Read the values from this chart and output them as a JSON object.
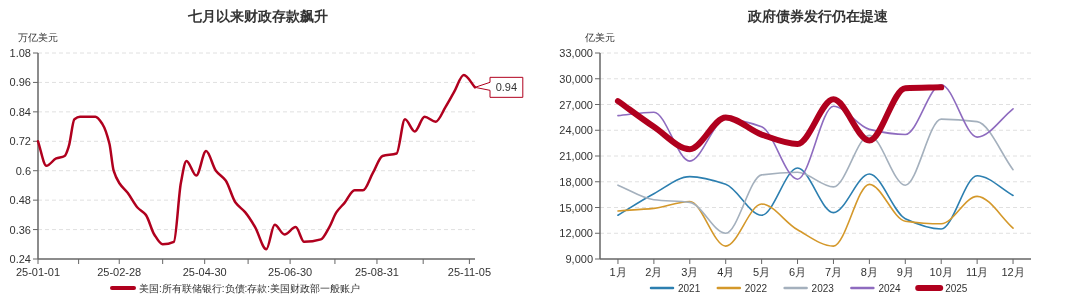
{
  "chart_data": [
    {
      "type": "line",
      "title": "七月以来财政存款飙升",
      "ylabel": "万亿美元",
      "grid": "y",
      "legend": "bottom",
      "x": [
        "2025-01-01",
        "2025-01-07",
        "2025-01-14",
        "2025-01-20",
        "2025-01-23",
        "2025-01-27",
        "2025-01-31",
        "2025-02-11",
        "2025-02-16",
        "2025-02-21",
        "2025-02-24",
        "2025-02-28",
        "2025-03-06",
        "2025-03-13",
        "2025-03-19",
        "2025-03-25",
        "2025-03-31",
        "2025-04-08",
        "2025-04-13",
        "2025-04-17",
        "2025-04-24",
        "2025-05-01",
        "2025-05-08",
        "2025-05-15",
        "2025-05-22",
        "2025-05-29",
        "2025-06-05",
        "2025-06-13",
        "2025-06-19",
        "2025-06-26",
        "2025-07-04",
        "2025-07-10",
        "2025-07-22",
        "2025-07-28",
        "2025-08-02",
        "2025-08-08",
        "2025-08-15",
        "2025-08-21",
        "2025-08-28",
        "2025-09-04",
        "2025-09-14",
        "2025-09-20",
        "2025-09-27",
        "2025-10-04",
        "2025-10-12",
        "2025-10-19",
        "2025-10-25",
        "2025-11-01",
        "2025-11-09"
      ],
      "series": [
        {
          "name": "美国:所有联储银行:负债:存款:美国财政部一般账户",
          "color": "#b0001e",
          "values": [
            0.72,
            0.62,
            0.65,
            0.66,
            0.7,
            0.81,
            0.82,
            0.82,
            0.79,
            0.71,
            0.6,
            0.55,
            0.51,
            0.45,
            0.42,
            0.34,
            0.3,
            0.31,
            0.55,
            0.64,
            0.58,
            0.68,
            0.6,
            0.56,
            0.47,
            0.43,
            0.37,
            0.28,
            0.38,
            0.34,
            0.37,
            0.31,
            0.32,
            0.37,
            0.43,
            0.47,
            0.52,
            0.52,
            0.59,
            0.66,
            0.67,
            0.81,
            0.76,
            0.82,
            0.8,
            0.86,
            0.92,
            0.99,
            0.94
          ]
        }
      ],
      "xlim": [
        "2025-01-01",
        "2025-11-09"
      ],
      "xticks": [
        {
          "value": "2025-01-01",
          "label": "25-01-01"
        },
        {
          "value": "2025-01-30",
          "label": null
        },
        {
          "value": "2025-02-28",
          "label": "25-02-28"
        },
        {
          "value": "2025-03-31",
          "label": null
        },
        {
          "value": "2025-04-30",
          "label": "25-04-30"
        },
        {
          "value": "2025-05-31",
          "label": null
        },
        {
          "value": "2025-06-30",
          "label": "25-06-30"
        },
        {
          "value": "2025-08-01",
          "label": null
        },
        {
          "value": "2025-08-31",
          "label": "25-08-31"
        },
        {
          "value": "2025-10-03",
          "label": null
        },
        {
          "value": "2025-11-05",
          "label": "25-11-05"
        }
      ],
      "ylim": [
        0.24,
        1.08
      ],
      "yticks": [
        0.24,
        0.36,
        0.48,
        0.6,
        0.72,
        0.84,
        0.96,
        1.08
      ],
      "annotations": [
        {
          "text": "0.94",
          "x": "2025-11-09",
          "y": 0.94
        }
      ]
    },
    {
      "type": "line",
      "title": "政府债券发行仍在提速",
      "ylabel": "亿美元",
      "grid": "y",
      "legend": "bottom",
      "categories": [
        "1月",
        "2月",
        "3月",
        "4月",
        "5月",
        "6月",
        "7月",
        "8月",
        "9月",
        "10月",
        "11月",
        "12月"
      ],
      "series": [
        {
          "name": "2021",
          "color": "#2c7fb0",
          "values": [
            14100,
            16600,
            18600,
            17700,
            14100,
            19600,
            14400,
            18900,
            13700,
            12500,
            18700,
            16400
          ]
        },
        {
          "name": "2022",
          "color": "#d4982a",
          "values": [
            14600,
            14900,
            15700,
            10500,
            15400,
            12400,
            10500,
            17700,
            13400,
            13100,
            16300,
            12600
          ]
        },
        {
          "name": "2023",
          "color": "#a4b0bd",
          "values": [
            17600,
            15900,
            15600,
            12000,
            18800,
            19100,
            17400,
            23400,
            17600,
            25300,
            25000,
            19400
          ]
        },
        {
          "name": "2024",
          "color": "#8e6bbf",
          "values": [
            25700,
            26100,
            20400,
            25300,
            24400,
            18300,
            26800,
            24100,
            23500,
            29300,
            23200,
            26500
          ]
        },
        {
          "name": "2025",
          "color": "#b0001e",
          "values": [
            27400,
            24400,
            21800,
            25500,
            23500,
            22400,
            27600,
            22800,
            28900,
            29000,
            null,
            null
          ]
        }
      ],
      "ylim": [
        9000,
        33000
      ],
      "yticks": [
        {
          "value": 9000,
          "label": "9,000"
        },
        {
          "value": 12000,
          "label": "12,000"
        },
        {
          "value": 15000,
          "label": "15,000"
        },
        {
          "value": 18000,
          "label": "18,000"
        },
        {
          "value": 21000,
          "label": "21,000"
        },
        {
          "value": 24000,
          "label": "24,000"
        },
        {
          "value": 27000,
          "label": "27,000"
        },
        {
          "value": 30000,
          "label": "30,000"
        },
        {
          "value": 33000,
          "label": "33,000"
        }
      ]
    }
  ]
}
